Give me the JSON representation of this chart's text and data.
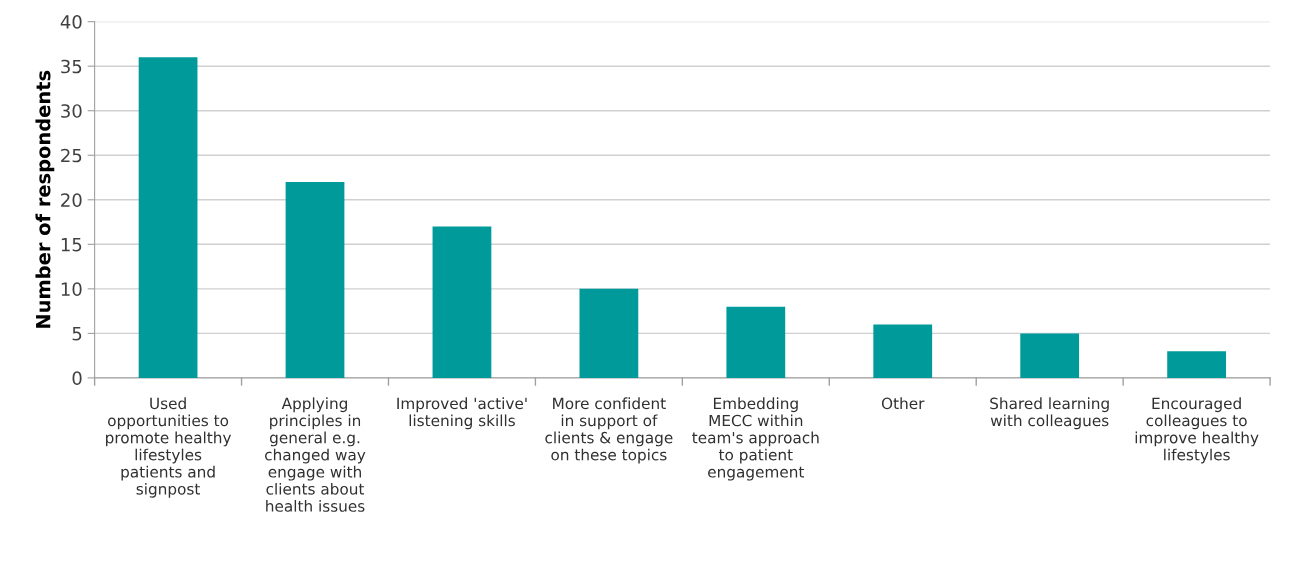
{
  "chart_data": {
    "type": "bar",
    "ylabel": "Number of respondents",
    "categories": [
      "Used\nopportunities to\npromote healthy\nlifestyles\npatients and\nsignpost",
      "Applying\nprinciples in\ngeneral e.g.\nchanged way\nengage with\nclients about\nhealth issues",
      "Improved 'active'\nlistening skills",
      "More confident\nin support of\nclients & engage\non these topics",
      "Embedding\nMECC within\nteam's approach\nto patient\nengagement",
      "Other",
      "Shared learning\nwith colleagues",
      "Encouraged\ncolleagues to\nimprove healthy\nlifestyles"
    ],
    "values": [
      36,
      22,
      17,
      10,
      8,
      6,
      5,
      3
    ],
    "color": "#009a9a",
    "ylim": [
      0,
      40
    ],
    "yticks": [
      0,
      5,
      10,
      15,
      20,
      25,
      30,
      35,
      40
    ],
    "grid": "y"
  }
}
